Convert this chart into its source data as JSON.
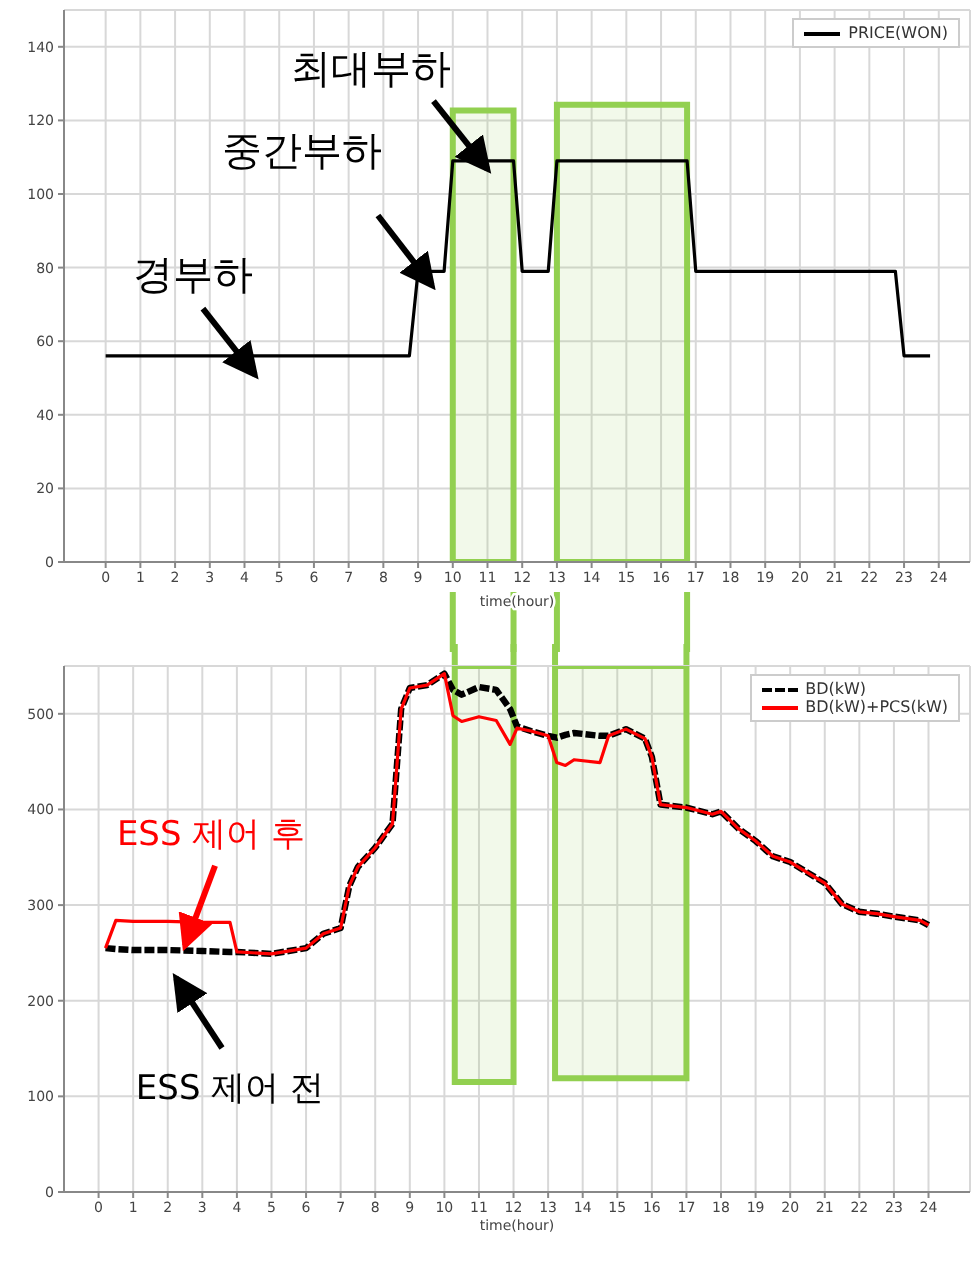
{
  "chart_data": [
    {
      "type": "line",
      "xlabel": "time(hour)",
      "x": [
        0,
        8.75,
        9,
        9.75,
        10,
        11.75,
        12,
        12.75,
        13,
        16.75,
        17,
        22.75,
        23,
        23.75
      ],
      "series": [
        {
          "name": "PRICE(WON)",
          "color": "#000000",
          "line_style": "solid",
          "values": [
            56,
            56,
            79,
            79,
            109,
            109,
            79,
            79,
            109,
            109,
            79,
            79,
            56,
            56
          ]
        }
      ],
      "xlim": [
        -1.2,
        24.9
      ],
      "xticks": [
        0,
        1,
        2,
        3,
        4,
        5,
        6,
        7,
        8,
        9,
        10,
        11,
        12,
        13,
        14,
        15,
        16,
        17,
        18,
        19,
        20,
        21,
        22,
        23,
        24
      ],
      "ylim": [
        0,
        150
      ],
      "yticks": [
        0,
        20,
        40,
        60,
        80,
        100,
        120,
        140
      ],
      "grid": true,
      "legend": "top right",
      "bands": [
        {
          "axis": "x",
          "from": 10,
          "to": 11.75,
          "color": "#92d050"
        },
        {
          "axis": "x",
          "from": 13,
          "to": 16.75,
          "color": "#92d050"
        }
      ],
      "annotations": [
        {
          "text": "경부하",
          "x": 4.3,
          "y": 56
        },
        {
          "text": "중간부하",
          "x": 9.4,
          "y": 79
        },
        {
          "text": "최대부하",
          "x": 11,
          "y": 109
        }
      ]
    },
    {
      "type": "line",
      "xlabel": "time(hour)",
      "x": [
        0.2,
        0.5,
        1,
        2,
        3,
        3.8,
        4,
        5,
        6,
        6.5,
        7,
        7.25,
        7.5,
        8,
        8.5,
        8.75,
        9,
        9.5,
        10,
        10.25,
        10.5,
        11,
        11.5,
        11.9,
        12.1,
        12.5,
        13,
        13.25,
        13.5,
        13.75,
        14.5,
        14.75,
        15.25,
        15.8,
        16,
        16.25,
        17,
        17.75,
        18,
        18.5,
        19,
        19.5,
        20,
        21,
        21.5,
        22,
        22.5,
        23,
        23.75,
        24
      ],
      "series": [
        {
          "name": "BD(kW)",
          "color": "#000000",
          "line_style": "dashed",
          "values": [
            255,
            254,
            253,
            253,
            252,
            251,
            251,
            249,
            255,
            270,
            276,
            320,
            340,
            360,
            385,
            505,
            527,
            530,
            542,
            525,
            520,
            528,
            525,
            505,
            487,
            482,
            477,
            475,
            478,
            480,
            477,
            477,
            484,
            474,
            455,
            405,
            402,
            395,
            398,
            380,
            367,
            351,
            345,
            323,
            301,
            293,
            291,
            288,
            284,
            279
          ]
        },
        {
          "name": "BD(kW)+PCS(kW)",
          "color": "#ff0000",
          "line_style": "solid",
          "values": [
            255,
            284,
            283,
            283,
            282,
            282,
            251,
            249,
            255,
            270,
            276,
            320,
            340,
            360,
            385,
            505,
            527,
            530,
            542,
            498,
            492,
            497,
            493,
            468,
            485,
            482,
            477,
            449,
            446,
            452,
            449,
            477,
            484,
            474,
            455,
            405,
            402,
            395,
            398,
            380,
            367,
            351,
            345,
            323,
            301,
            293,
            291,
            288,
            284,
            279
          ]
        }
      ],
      "xlim": [
        -1,
        25.2
      ],
      "xticks": [
        0,
        1,
        2,
        3,
        4,
        5,
        6,
        7,
        8,
        9,
        10,
        11,
        12,
        13,
        14,
        15,
        16,
        17,
        18,
        19,
        20,
        21,
        22,
        23,
        24
      ],
      "ylim": [
        0,
        550
      ],
      "yticks": [
        0,
        100,
        200,
        300,
        400,
        500
      ],
      "grid": true,
      "legend": "top right",
      "bands": [
        {
          "axis": "x",
          "from": 10.3,
          "to": 12,
          "color": "#92d050"
        },
        {
          "axis": "x",
          "from": 13.2,
          "to": 17,
          "color": "#92d050"
        }
      ],
      "annotations": [
        {
          "text": "ESS 제어 후",
          "x": 2.5,
          "y": 282
        },
        "ESS 제어 전"
      ]
    }
  ]
}
